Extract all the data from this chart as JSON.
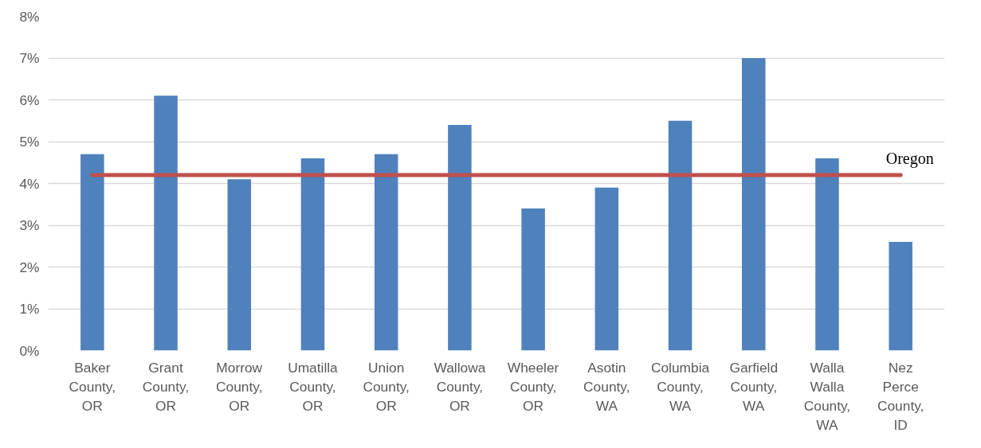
{
  "chart_data": {
    "type": "bar",
    "categories": [
      "Baker County, OR",
      "Grant County, OR",
      "Morrow County, OR",
      "Umatilla County, OR",
      "Union County, OR",
      "Wallowa County, OR",
      "Wheeler County, OR",
      "Asotin County, WA",
      "Columbia County, WA",
      "Garfield County, WA",
      "Walla Walla County, WA",
      "Nez Perce County, ID"
    ],
    "series": [
      {
        "color": "#4f81bd",
        "values": [
          4.7,
          6.1,
          4.1,
          4.6,
          4.7,
          5.4,
          3.4,
          3.9,
          5.5,
          7.0,
          4.6,
          2.6
        ]
      }
    ],
    "ylim": [
      0,
      8
    ],
    "yticks": [
      {
        "value": 0,
        "label": "0%"
      },
      {
        "value": 1,
        "label": "1%"
      },
      {
        "value": 2,
        "label": "2%"
      },
      {
        "value": 3,
        "label": "3%"
      },
      {
        "value": 4,
        "label": "4%"
      },
      {
        "value": 5,
        "label": "5%"
      },
      {
        "value": 6,
        "label": "6%"
      },
      {
        "value": 7,
        "label": "7%"
      },
      {
        "value": 8,
        "label": "8%"
      }
    ],
    "ref_lines": [
      {
        "axis": "y",
        "value": 4.2,
        "label": "Oregon",
        "color": "#c0504d"
      }
    ],
    "grid": "y"
  }
}
